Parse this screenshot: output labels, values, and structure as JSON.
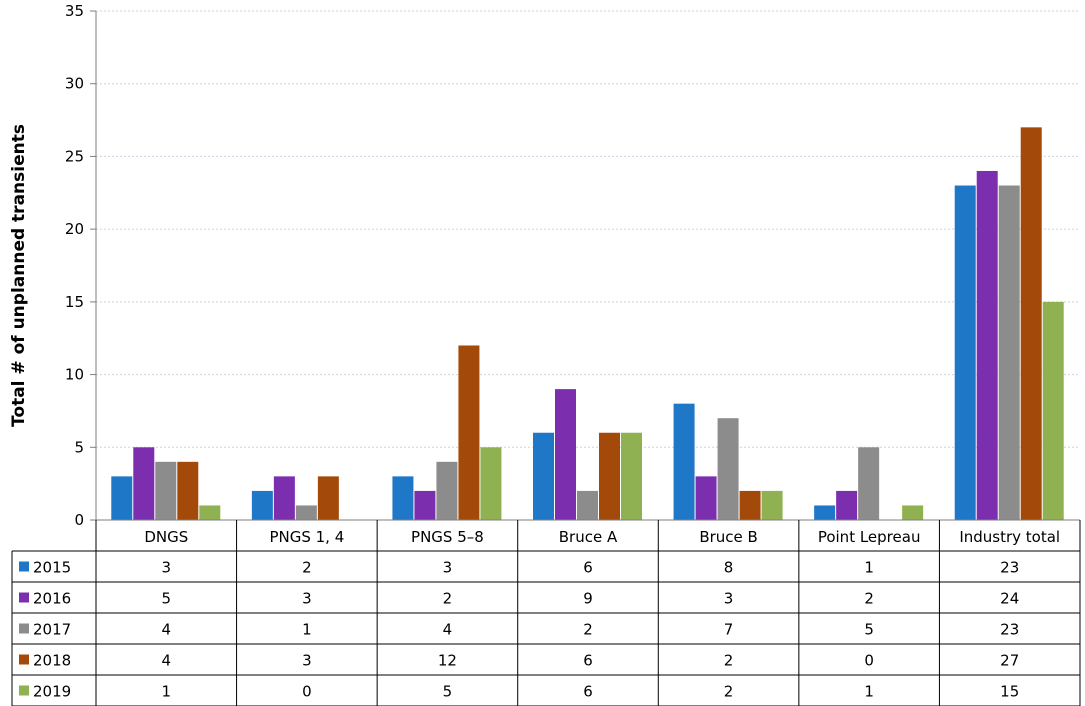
{
  "chart_data": {
    "type": "bar",
    "title": "",
    "xlabel": "",
    "ylabel": "Total # of unplanned transients",
    "ylim": [
      0,
      35
    ],
    "yticks": [
      0,
      5,
      10,
      15,
      20,
      25,
      30,
      35
    ],
    "grid": true,
    "legend": "data-table",
    "categories": [
      "DNGS",
      "PNGS 1, 4",
      "PNGS 5–8",
      "Bruce A",
      "Bruce B",
      "Point Lepreau",
      "Industry total"
    ],
    "series": [
      {
        "name": "2015",
        "color": "#1F77C8",
        "values": [
          3,
          2,
          3,
          6,
          8,
          1,
          23
        ]
      },
      {
        "name": "2016",
        "color": "#7B2FAE",
        "values": [
          5,
          3,
          2,
          9,
          3,
          2,
          24
        ]
      },
      {
        "name": "2017",
        "color": "#8C8C8C",
        "values": [
          4,
          1,
          4,
          2,
          7,
          5,
          23
        ]
      },
      {
        "name": "2018",
        "color": "#A34A0A",
        "values": [
          4,
          3,
          12,
          6,
          2,
          0,
          27
        ]
      },
      {
        "name": "2019",
        "color": "#8FB151",
        "values": [
          1,
          0,
          5,
          6,
          2,
          1,
          15
        ]
      }
    ]
  }
}
